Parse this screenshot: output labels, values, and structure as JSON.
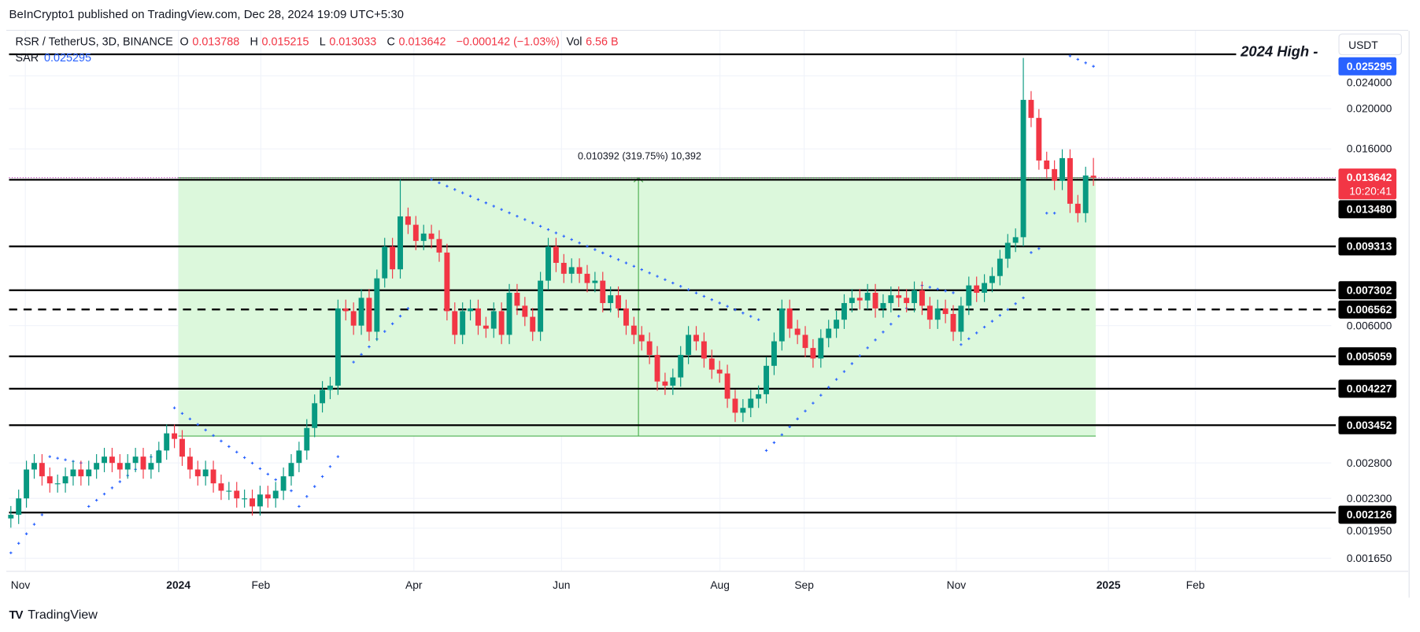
{
  "header": {
    "published": "BeInCrypto1 published on TradingView.com, Dec 28, 2024 19:09 UTC+5:30"
  },
  "legend": {
    "symbol": "RSR / TetherUS, 3D, BINANCE",
    "open_label": "O",
    "open": "0.013788",
    "high_label": "H",
    "high": "0.015215",
    "low_label": "L",
    "low": "0.013033",
    "close_label": "C",
    "close": "0.013642",
    "change": "−0.000142 (−1.03%)",
    "vol_label": "Vol",
    "vol": "6.56 B",
    "sar_label": "SAR",
    "sar_value": "0.025295"
  },
  "currency": "USDT",
  "annotations": {
    "high_2024": "2024 High -",
    "measure": "0.010392 (319.75%) 10,392"
  },
  "branding": {
    "logo_text": "TradingView"
  },
  "colors": {
    "up": "#089981",
    "down": "#f23645",
    "sar": "#2962ff",
    "range_fill": "#dcf8dc",
    "range_border": "#4caf50",
    "level": "#000000"
  },
  "chart_data": {
    "type": "candlestick",
    "interval": "3D",
    "y_scale": "log",
    "grid": true,
    "x_ticks": [
      "Nov",
      "2024",
      "Feb",
      "Apr",
      "Jun",
      "Aug",
      "Sep",
      "Nov",
      "2025",
      "Feb"
    ],
    "y_ticks": [
      "0.024000",
      "0.020000",
      "0.016000",
      "0.006000",
      "0.002800",
      "0.002300",
      "0.001950",
      "0.001650"
    ],
    "closes": [
      0.0021,
      0.0023,
      0.0027,
      0.0028,
      0.0026,
      0.0025,
      0.0025,
      0.0026,
      0.0027,
      0.0026,
      0.0027,
      0.0028,
      0.0029,
      0.0028,
      0.0027,
      0.0028,
      0.0029,
      0.0027,
      0.0028,
      0.003,
      0.0033,
      0.0032,
      0.0029,
      0.0027,
      0.0026,
      0.0027,
      0.0025,
      0.0024,
      0.0024,
      0.0023,
      0.0023,
      0.0022,
      0.00235,
      0.0023,
      0.0024,
      0.0026,
      0.0028,
      0.003,
      0.0034,
      0.0039,
      0.0042,
      0.0043,
      0.0066,
      0.0065,
      0.006,
      0.007,
      0.0058,
      0.0078,
      0.0093,
      0.0082,
      0.011,
      0.0105,
      0.0096,
      0.01,
      0.0097,
      0.009,
      0.0065,
      0.0057,
      0.0065,
      0.0066,
      0.006,
      0.0059,
      0.0065,
      0.0057,
      0.0072,
      0.0067,
      0.0063,
      0.0058,
      0.0077,
      0.0093,
      0.0085,
      0.008,
      0.0083,
      0.008,
      0.0076,
      0.0077,
      0.0068,
      0.0071,
      0.0066,
      0.006,
      0.0057,
      0.0055,
      0.0051,
      0.0044,
      0.0043,
      0.0045,
      0.0051,
      0.0057,
      0.0055,
      0.005,
      0.0047,
      0.0046,
      0.004,
      0.0037,
      0.0038,
      0.004,
      0.0041,
      0.0048,
      0.0055,
      0.0066,
      0.0059,
      0.0057,
      0.0053,
      0.005,
      0.0056,
      0.0059,
      0.0062,
      0.0068,
      0.007,
      0.0069,
      0.0072,
      0.0066,
      0.0068,
      0.0071,
      0.007,
      0.0068,
      0.0073,
      0.0067,
      0.0062,
      0.0066,
      0.0064,
      0.0058,
      0.0067,
      0.0075,
      0.0072,
      0.0076,
      0.0079,
      0.0087,
      0.0095,
      0.0098,
      0.021,
      0.019,
      0.015,
      0.0143,
      0.0134,
      0.0152,
      0.0118,
      0.0112,
      0.0138,
      0.013642
    ],
    "last_candle": {
      "open": 0.013788,
      "high": 0.015215,
      "low": 0.013033,
      "close": 0.013642
    },
    "notable_highs": [
      {
        "index": 50,
        "value": 0.0135
      },
      {
        "index": 130,
        "value": 0.0265
      }
    ],
    "sar_segments": [
      {
        "from": 0,
        "to": 4,
        "start": 0.0017,
        "end": 0.0021
      },
      {
        "from": 5,
        "to": 9,
        "start": 0.0029,
        "end": 0.0028
      },
      {
        "from": 10,
        "to": 20,
        "start": 0.0022,
        "end": 0.0031
      },
      {
        "from": 21,
        "to": 36,
        "start": 0.0038,
        "end": 0.0024
      },
      {
        "from": 37,
        "to": 42,
        "start": 0.0022,
        "end": 0.0029
      },
      {
        "from": 44,
        "to": 51,
        "start": 0.0049,
        "end": 0.0066
      },
      {
        "from": 54,
        "to": 96,
        "start": 0.0135,
        "end": 0.0062
      },
      {
        "from": 97,
        "to": 116,
        "start": 0.003,
        "end": 0.0069
      },
      {
        "from": 117,
        "to": 121,
        "start": 0.0075,
        "end": 0.0072
      },
      {
        "from": 122,
        "to": 130,
        "start": 0.0054,
        "end": 0.007
      },
      {
        "from": 131,
        "to": 132,
        "start": 0.009,
        "end": 0.0092
      },
      {
        "from": 133,
        "to": 134,
        "start": 0.0112,
        "end": 0.0112
      },
      {
        "from": 136,
        "to": 139,
        "start": 0.0268,
        "end": 0.0253
      }
    ],
    "price_range": {
      "low": 0.00325,
      "high": 0.013642,
      "change": "0.010392",
      "percent": "319.75%",
      "bars": "10,392"
    },
    "levels": [
      {
        "value": "0.013480",
        "style": "solid"
      },
      {
        "value": "0.009313",
        "style": "solid"
      },
      {
        "value": "0.007302",
        "style": "solid"
      },
      {
        "value": "0.006562",
        "style": "dashed"
      },
      {
        "value": "0.005059",
        "style": "solid"
      },
      {
        "value": "0.004227",
        "style": "solid"
      },
      {
        "value": "0.003452",
        "style": "solid"
      },
      {
        "value": "0.002126",
        "style": "solid"
      }
    ],
    "current_price": {
      "value": "0.013642",
      "countdown": "10:20:41"
    },
    "sar_current": "0.025295"
  }
}
